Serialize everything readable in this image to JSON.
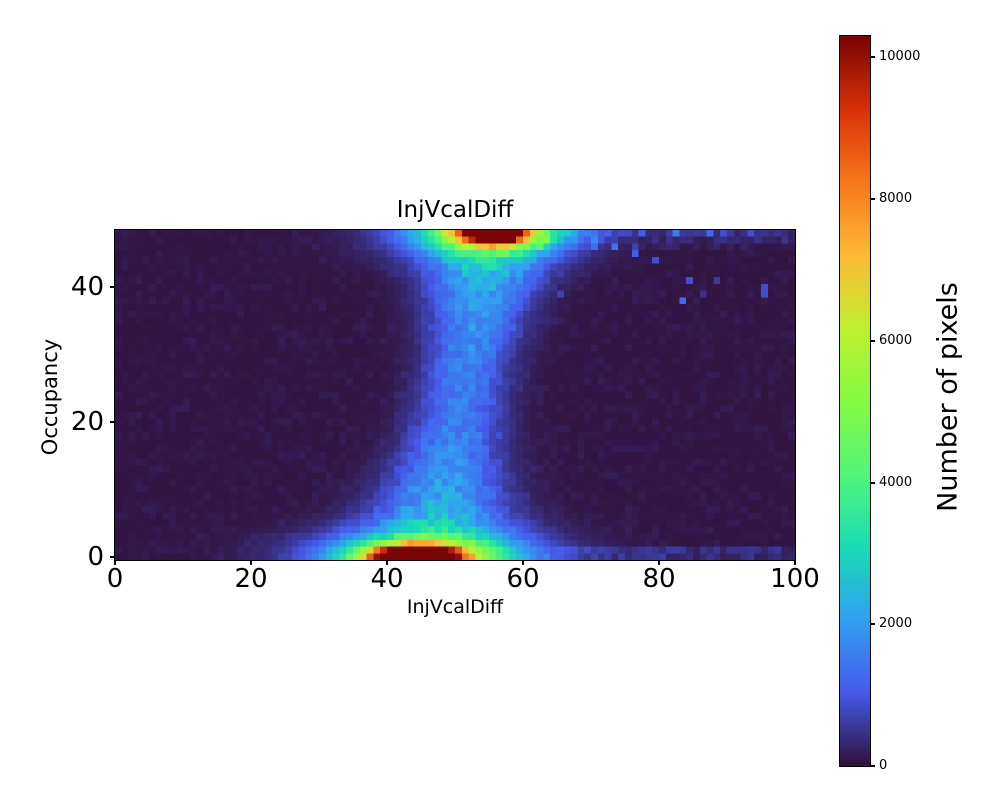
{
  "figure": {
    "title": "InjVcalDiff"
  },
  "axes": {
    "x": {
      "label": "InjVcalDiff",
      "ticks": [
        0,
        20,
        40,
        60,
        80,
        100
      ],
      "min": 0,
      "max": 100
    },
    "y": {
      "label": "Occupancy",
      "ticks": [
        0,
        20,
        40
      ],
      "min": -0.5,
      "max": 48.5
    }
  },
  "colorbar": {
    "label": "Number of pixels",
    "ticks": [
      0,
      2000,
      4000,
      6000,
      8000,
      10000
    ],
    "min": 0,
    "max": 10300,
    "colormap": "turbo"
  },
  "chart_data": {
    "type": "heatmap",
    "title": "InjVcalDiff",
    "xlabel": "InjVcalDiff",
    "ylabel": "Occupancy",
    "zlabel": "Number of pixels",
    "xlim": [
      0,
      100
    ],
    "ylim": [
      -0.5,
      48.5
    ],
    "vmin": 0,
    "vmax": 10300,
    "grid": {
      "nx": 100,
      "ny": 49
    },
    "legend": "colorbar-right",
    "description": "2D histogram: dark background (~0 counts) with a diffuse blue vertical band near InjVcalDiff 45-55 forming an hourglass between two intense hotspots: one on the bottom row centered near x=44 peaking above 10000 counts, one on the top row centered near x=56 peaking above 10000 counts; faint blue speckles and a thin streak extend along the top edge toward x=100.",
    "colormap": {
      "name": "turbo",
      "anchors": [
        [
          0.0,
          48,
          18,
          59
        ],
        [
          0.1,
          69,
          91,
          235
        ],
        [
          0.2,
          49,
          161,
          242
        ],
        [
          0.3,
          24,
          221,
          180
        ],
        [
          0.4,
          84,
          245,
          120
        ],
        [
          0.5,
          132,
          250,
          66
        ],
        [
          0.6,
          192,
          240,
          47
        ],
        [
          0.7,
          252,
          186,
          55
        ],
        [
          0.8,
          247,
          120,
          27
        ],
        [
          0.9,
          216,
          51,
          7
        ],
        [
          1.0,
          122,
          4,
          3
        ]
      ]
    },
    "model": {
      "background": {
        "base": 35,
        "noise": 130
      },
      "band": {
        "center_bottom": 46.5,
        "center_top": 55.5,
        "sigma_bottom": 8.5,
        "sigma_top": 7.0,
        "sigma_waist": 4.3,
        "waist_pos": 0.55,
        "amp_mid": 1500,
        "amp_end": 3000
      },
      "gaussians": [
        {
          "cx": 44,
          "cy": 0,
          "sx": 4.0,
          "sy": 1.0,
          "amp": 10400
        },
        {
          "cx": 45,
          "cy": 0,
          "sx": 7.5,
          "sy": 1.6,
          "amp": 4200
        },
        {
          "cx": 46,
          "cy": 0.5,
          "sx": 12.0,
          "sy": 2.6,
          "amp": 1600
        },
        {
          "cx": 56,
          "cy": 48,
          "sx": 2.6,
          "sy": 0.9,
          "amp": 10400
        },
        {
          "cx": 55,
          "cy": 48,
          "sx": 5.5,
          "sy": 1.7,
          "amp": 4200
        },
        {
          "cx": 54,
          "cy": 48,
          "sx": 9.5,
          "sy": 2.8,
          "amp": 1600
        }
      ],
      "top_streak": {
        "j_min": 46,
        "x_min": 48,
        "amp": 800,
        "decay": 1.1
      },
      "bottom_streak": {
        "j_max": 1,
        "x_min": 62,
        "amp": 450
      },
      "speckles": {
        "j_min": 38,
        "i_min": 62,
        "threshold": 0.965,
        "amp": 700
      }
    }
  }
}
